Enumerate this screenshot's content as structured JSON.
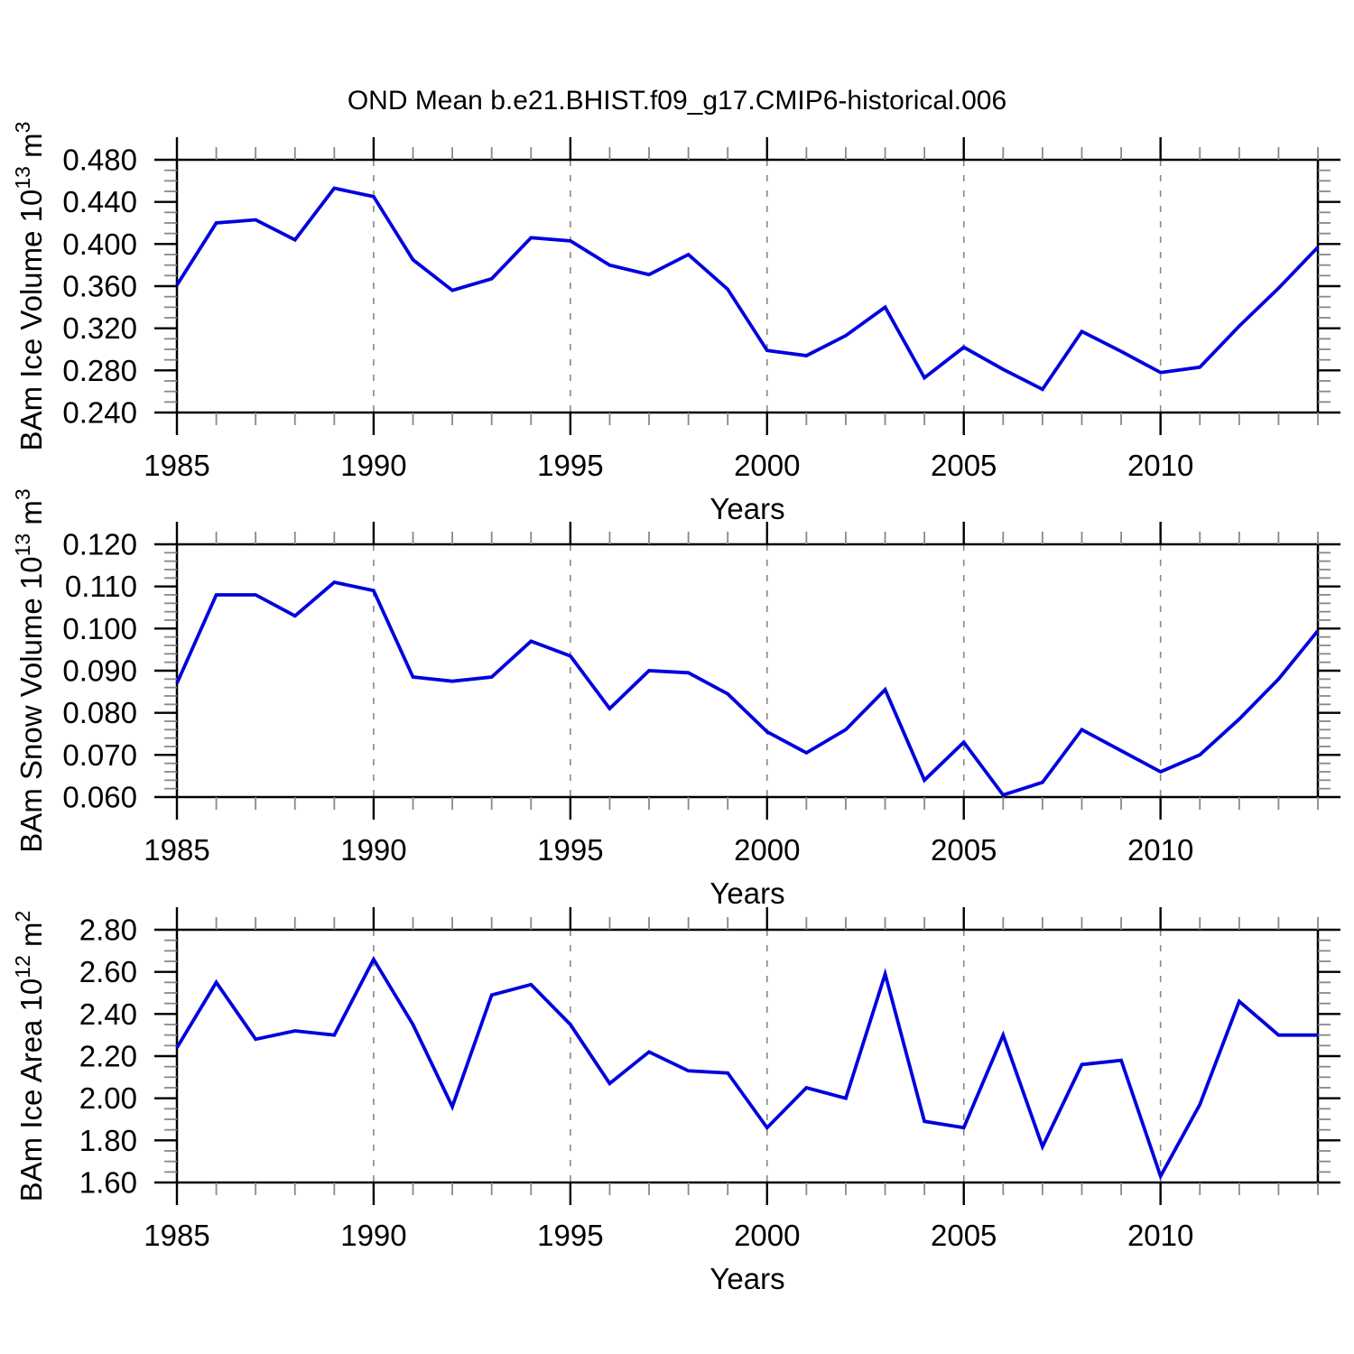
{
  "title": "OND Mean b.e21.BHIST.f09_g17.CMIP6-historical.006",
  "colors": {
    "series_line": "#0000dd",
    "gridline": "#888888",
    "axis_frame": "#000000",
    "major_tick": "#000000",
    "minor_tick": "#888888",
    "text": "#000000",
    "background": "#ffffff"
  },
  "x_axis": {
    "label": "Years",
    "years_start": 1985,
    "years_end": 2014,
    "major_ticks": [
      1985,
      1990,
      1995,
      2000,
      2005,
      2010
    ],
    "major_tick_labels": [
      "1985",
      "1990",
      "1995",
      "2000",
      "2005",
      "2010"
    ],
    "gridline_years": [
      1990,
      1995,
      2000,
      2005,
      2010
    ],
    "minor_tick_interval_years": 1
  },
  "chart_data": [
    {
      "type": "line",
      "id": "ice-volume",
      "ylabel": "BAm Ice Volume 10^13 m^3",
      "ylabel_parts": [
        {
          "t": "BAm Ice Volume 10"
        },
        {
          "t": "13",
          "sup": true
        },
        {
          "t": " m"
        },
        {
          "t": "3",
          "sup": true
        }
      ],
      "xlabel": "Years",
      "ylim": [
        0.24,
        0.48
      ],
      "ytick_interval": 0.04,
      "yminor_interval": 0.01,
      "ytick_labels": [
        "0.240",
        "0.280",
        "0.320",
        "0.360",
        "0.400",
        "0.440",
        "0.480"
      ],
      "grid": "vertical-dashed",
      "x": [
        1985,
        1986,
        1987,
        1988,
        1989,
        1990,
        1991,
        1992,
        1993,
        1994,
        1995,
        1996,
        1997,
        1998,
        1999,
        2000,
        2001,
        2002,
        2003,
        2004,
        2005,
        2006,
        2007,
        2008,
        2009,
        2010,
        2011,
        2012,
        2013,
        2014
      ],
      "values": [
        0.361,
        0.42,
        0.423,
        0.404,
        0.453,
        0.445,
        0.385,
        0.356,
        0.367,
        0.406,
        0.403,
        0.38,
        0.371,
        0.39,
        0.357,
        0.299,
        0.294,
        0.313,
        0.34,
        0.273,
        0.302,
        0.281,
        0.262,
        0.317,
        0.298,
        0.278,
        0.283,
        0.322,
        0.358,
        0.397
      ]
    },
    {
      "type": "line",
      "id": "snow-volume",
      "ylabel": "BAm Snow Volume 10^13 m^3",
      "ylabel_parts": [
        {
          "t": "BAm Snow Volume 10"
        },
        {
          "t": "13",
          "sup": true
        },
        {
          "t": " m"
        },
        {
          "t": "3",
          "sup": true
        }
      ],
      "xlabel": "Years",
      "ylim": [
        0.06,
        0.12
      ],
      "ytick_interval": 0.01,
      "yminor_interval": 0.002,
      "ytick_labels": [
        "0.060",
        "0.070",
        "0.080",
        "0.090",
        "0.100",
        "0.110",
        "0.120"
      ],
      "grid": "vertical-dashed",
      "x": [
        1985,
        1986,
        1987,
        1988,
        1989,
        1990,
        1991,
        1992,
        1993,
        1994,
        1995,
        1996,
        1997,
        1998,
        1999,
        2000,
        2001,
        2002,
        2003,
        2004,
        2005,
        2006,
        2007,
        2008,
        2009,
        2010,
        2011,
        2012,
        2013,
        2014
      ],
      "values": [
        0.087,
        0.108,
        0.108,
        0.103,
        0.111,
        0.109,
        0.0885,
        0.0875,
        0.0885,
        0.097,
        0.0935,
        0.081,
        0.09,
        0.0895,
        0.0845,
        0.0755,
        0.0705,
        0.076,
        0.0855,
        0.064,
        0.073,
        0.0605,
        0.0635,
        0.076,
        0.071,
        0.066,
        0.07,
        0.0785,
        0.088,
        0.0995
      ]
    },
    {
      "type": "line",
      "id": "ice-area",
      "ylabel": "BAm Ice Area 10^12 m^2",
      "ylabel_parts": [
        {
          "t": "BAm Ice Area 10"
        },
        {
          "t": "12",
          "sup": true
        },
        {
          "t": " m"
        },
        {
          "t": "2",
          "sup": true
        }
      ],
      "xlabel": "Years",
      "ylim": [
        1.6,
        2.8
      ],
      "ytick_interval": 0.2,
      "yminor_interval": 0.05,
      "ytick_labels": [
        "1.60",
        "1.80",
        "2.00",
        "2.20",
        "2.40",
        "2.60",
        "2.80"
      ],
      "grid": "vertical-dashed",
      "x": [
        1985,
        1986,
        1987,
        1988,
        1989,
        1990,
        1991,
        1992,
        1993,
        1994,
        1995,
        1996,
        1997,
        1998,
        1999,
        2000,
        2001,
        2002,
        2003,
        2004,
        2005,
        2006,
        2007,
        2008,
        2009,
        2010,
        2011,
        2012,
        2013,
        2014
      ],
      "values": [
        2.24,
        2.55,
        2.28,
        2.32,
        2.3,
        2.66,
        2.35,
        1.96,
        2.49,
        2.54,
        2.35,
        2.07,
        2.22,
        2.13,
        2.12,
        1.86,
        2.05,
        2.0,
        2.59,
        1.89,
        1.86,
        2.3,
        1.77,
        2.16,
        2.18,
        1.63,
        1.97,
        2.46,
        2.3,
        2.3
      ]
    }
  ]
}
